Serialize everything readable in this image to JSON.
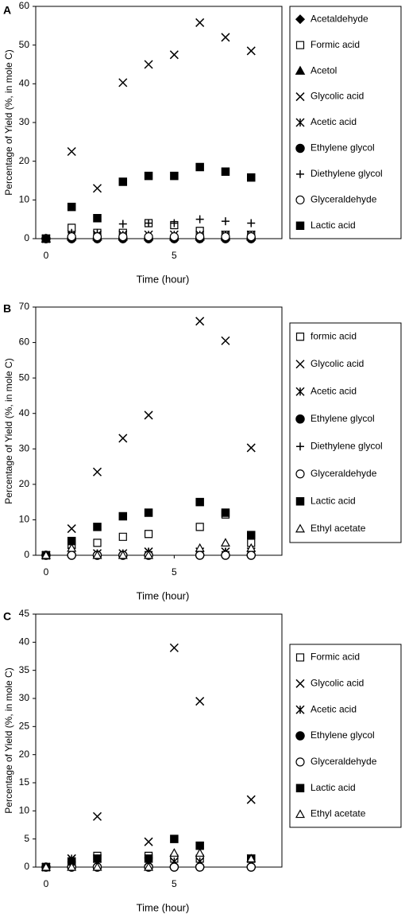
{
  "chart_data": [
    {
      "type": "scatter",
      "label": "A",
      "xlabel": "Time (hour)",
      "ylabel": "Percentage of Yield (%, in mole C)",
      "x": [
        0,
        1,
        2,
        3,
        4,
        5,
        6,
        7,
        8
      ],
      "xlim": [
        -0.4,
        9.2
      ],
      "xticks": [
        0,
        5
      ],
      "ylim": [
        0,
        60
      ],
      "yticks": [
        0,
        10,
        20,
        30,
        40,
        50,
        60
      ],
      "series": [
        {
          "name": "Acetaldehyde",
          "marker": "diamond",
          "color": "#000000",
          "values": [
            0,
            0,
            0,
            0,
            0,
            0,
            0,
            0,
            0
          ]
        },
        {
          "name": "Formic acid",
          "marker": "square-open",
          "color": "#000000",
          "values": [
            0,
            2.8,
            1.5,
            1.5,
            4,
            3.5,
            2,
            1,
            1
          ]
        },
        {
          "name": "Acetol",
          "marker": "triangle",
          "color": "#000000",
          "values": [
            0,
            0.5,
            0.5,
            0.5,
            0.5,
            0.5,
            0.5,
            0.5,
            0.5
          ]
        },
        {
          "name": "Glycolic acid",
          "marker": "x",
          "color": "#000000",
          "values": [
            0,
            22.5,
            13,
            40.3,
            45,
            47.5,
            55.8,
            52,
            48.5
          ]
        },
        {
          "name": "Acetic acid",
          "marker": "asterisk",
          "color": "#000000",
          "values": [
            0,
            1,
            1,
            1,
            1,
            1,
            1,
            1,
            1
          ]
        },
        {
          "name": "Ethylene glycol",
          "marker": "circle",
          "color": "#000000",
          "values": [
            0,
            0,
            0,
            0,
            0,
            0,
            0,
            0,
            0
          ]
        },
        {
          "name": "Diethylene glycol",
          "marker": "plus",
          "color": "#000000",
          "values": [
            0,
            1.5,
            1.5,
            3.8,
            4,
            4,
            5,
            4.5,
            4
          ]
        },
        {
          "name": "Glyceraldehyde",
          "marker": "circle-open",
          "color": "#000000",
          "values": [
            0,
            0.5,
            0.5,
            0.5,
            0.5,
            0.5,
            0.5,
            0.5,
            0.5
          ]
        },
        {
          "name": "Lactic acid",
          "marker": "square",
          "color": "#000000",
          "values": [
            0,
            8.2,
            5.3,
            14.7,
            16.2,
            16.2,
            18.5,
            17.3,
            15.8
          ]
        }
      ]
    },
    {
      "type": "scatter",
      "label": "B",
      "xlabel": "Time (hour)",
      "ylabel": "Percentage of Yield (%, in mole C)",
      "x": [
        0,
        1,
        2,
        3,
        4,
        6,
        7,
        8
      ],
      "xlim": [
        -0.4,
        9.2
      ],
      "xticks": [
        0,
        5
      ],
      "ylim": [
        0,
        70
      ],
      "yticks": [
        0,
        10,
        20,
        30,
        40,
        50,
        60,
        70
      ],
      "series": [
        {
          "name": "formic acid",
          "marker": "square-open",
          "color": "#000000",
          "values": [
            0,
            3,
            3.5,
            5.2,
            6,
            8,
            11.5,
            3.5
          ]
        },
        {
          "name": "Glycolic acid",
          "marker": "x",
          "color": "#000000",
          "values": [
            0,
            7.5,
            23.5,
            33,
            39.5,
            66,
            60.5,
            30.3
          ]
        },
        {
          "name": "Acetic acid",
          "marker": "asterisk",
          "color": "#000000",
          "values": [
            0,
            1,
            0.5,
            0.5,
            1,
            1,
            1,
            1
          ]
        },
        {
          "name": "Ethylene glycol",
          "marker": "circle",
          "color": "#000000",
          "values": [
            0,
            0,
            0,
            0,
            0,
            0,
            0,
            0
          ]
        },
        {
          "name": "Diethylene glycol",
          "marker": "plus",
          "color": "#000000",
          "values": [
            0,
            2,
            0.5,
            0.5,
            1,
            1,
            1,
            1
          ]
        },
        {
          "name": "Glyceraldehyde",
          "marker": "circle-open",
          "color": "#000000",
          "values": [
            0,
            0,
            0,
            0,
            0,
            0,
            0,
            0
          ]
        },
        {
          "name": "Lactic acid",
          "marker": "square",
          "color": "#000000",
          "values": [
            0,
            4,
            8,
            11,
            12,
            15,
            12,
            5.7
          ]
        },
        {
          "name": "Ethyl acetate",
          "marker": "triangle-open",
          "color": "#000000",
          "values": [
            0,
            2,
            0,
            0,
            0,
            2,
            3.5,
            2
          ]
        }
      ]
    },
    {
      "type": "scatter",
      "label": "C",
      "xlabel": "Time (hour)",
      "ylabel": "Percentage of Yield (%, in mole C)",
      "x": [
        0,
        1,
        2,
        4,
        5,
        6,
        8
      ],
      "xlim": [
        -0.4,
        9.2
      ],
      "xticks": [
        0,
        5
      ],
      "ylim": [
        0,
        45
      ],
      "yticks": [
        0,
        5,
        10,
        15,
        20,
        25,
        30,
        35,
        40,
        45
      ],
      "series": [
        {
          "name": "Formic acid",
          "marker": "square-open",
          "color": "#000000",
          "values": [
            0,
            0.5,
            2,
            2,
            1.5,
            1.5,
            1.5
          ]
        },
        {
          "name": "Glycolic acid",
          "marker": "x",
          "color": "#000000",
          "values": [
            0,
            1.5,
            9,
            4.5,
            39,
            29.5,
            12
          ]
        },
        {
          "name": "Acetic acid",
          "marker": "asterisk",
          "color": "#000000",
          "values": [
            0,
            1.5,
            1.5,
            1,
            1,
            1,
            1.5
          ]
        },
        {
          "name": "Ethylene glycol",
          "marker": "circle",
          "color": "#000000",
          "values": [
            0,
            0,
            0,
            0,
            0,
            0,
            0
          ]
        },
        {
          "name": "Glyceraldehyde",
          "marker": "circle-open",
          "color": "#000000",
          "values": [
            0,
            0,
            0,
            0,
            0,
            0,
            0
          ]
        },
        {
          "name": "Lactic acid",
          "marker": "square",
          "color": "#000000",
          "values": [
            0,
            1,
            1.5,
            1.5,
            5,
            3.8,
            1.5
          ]
        },
        {
          "name": "Ethyl acetate",
          "marker": "triangle-open",
          "color": "#000000",
          "values": [
            0,
            0,
            0,
            0,
            2.5,
            2.5,
            1.5
          ]
        }
      ]
    }
  ]
}
